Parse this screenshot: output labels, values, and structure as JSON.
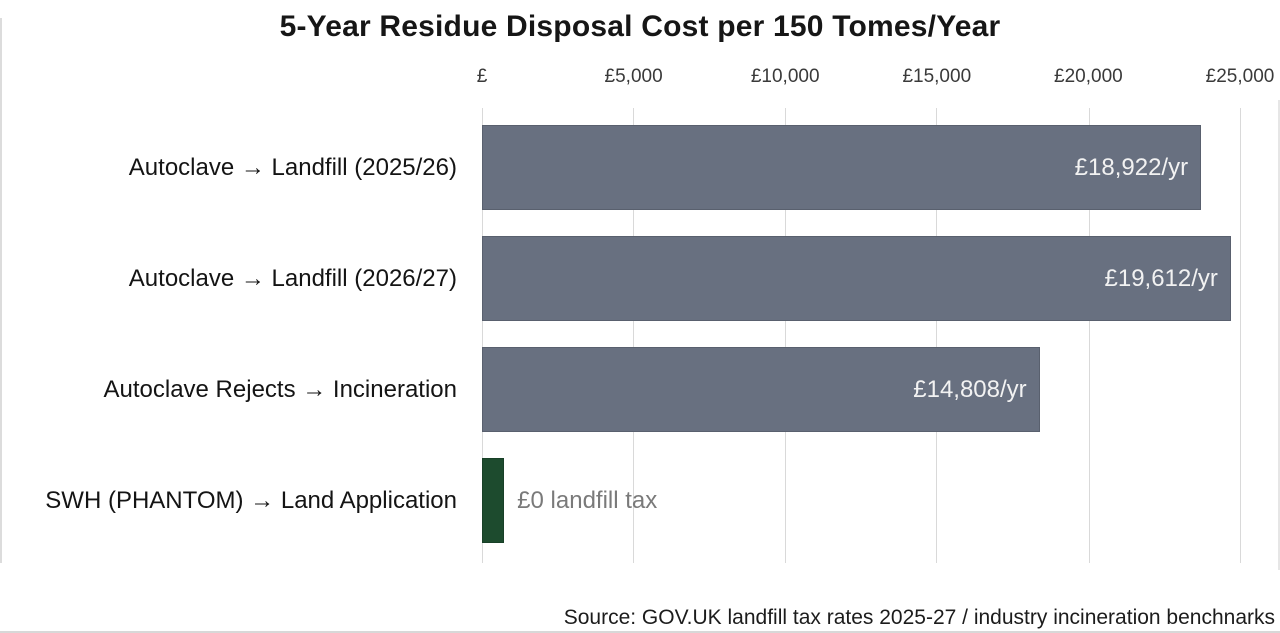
{
  "title": "5-Year Residue Disposal Cost per 150 Tomes/Year",
  "source_note": "Source: GOV.UK landfill tax rates 2025-27 / industry incineration benchnarks",
  "x_axis": {
    "tick_labels": [
      "£",
      "£5,000",
      "£10,000",
      "£15,000",
      "£20,000",
      "£25,000"
    ]
  },
  "chart_data": {
    "type": "bar",
    "orientation": "horizontal",
    "title": "5-Year Residue Disposal Cost per 150 Tomes/Year",
    "categories": [
      "Autoclave → Landfill (2025/26)",
      "Autoclave → Landfill (2026/27)",
      "Autoclave Rejects → Incineration",
      "SWH (PHANTOM) → Land Application"
    ],
    "values": [
      18922,
      19612,
      14808,
      0
    ],
    "value_labels": [
      "£18,922/yr",
      "£19,612/yr",
      "£14,808/yr",
      "£0 landfill tax"
    ],
    "xlim": [
      0,
      25000
    ],
    "x_tick_values": [
      0,
      5000,
      10000,
      15000,
      20000,
      25000
    ],
    "x_tick_labels": [
      "£",
      "£5,000",
      "£10,000",
      "£15,000",
      "£20,000",
      "£25,000"
    ],
    "grid": "vertical-light",
    "legend": "none",
    "bars": [
      {
        "category": "Autoclave → Landfill (2025/26)",
        "value": 18922,
        "value_label": "£18,922/yr",
        "label_placement": "inside-end",
        "color": "#687080",
        "display_frac": 0.94
      },
      {
        "category": "Autoclave → Landfill (2026/27)",
        "value": 19612,
        "value_label": "£19,612/yr",
        "label_placement": "inside-end",
        "color": "#687080",
        "display_frac": 0.979
      },
      {
        "category": "Autoclave Rejects → Incineration",
        "value": 14808,
        "value_label": "£14,808/yr",
        "label_placement": "inside-end",
        "color": "#687080",
        "display_frac": 0.729
      },
      {
        "category": "SWH (PHANTOM) → Land Application",
        "value": 0,
        "value_label": "£0 landfill tax",
        "label_placement": "outside-end",
        "color": "#1d4b2e",
        "display_frac": 0.029
      }
    ],
    "source": "Source: GOV.UK landfill tax rates 2025-27 / industry incineration benchnarks"
  },
  "colors": {
    "bar_gray": "#687080",
    "bar_green": "#1d4b2e",
    "gridline": "#d9d9d9",
    "tick_text": "#3a3a3a",
    "category_text": "#141414",
    "value_text_inside": "#f2f2f2",
    "value_text_muted": "#7a7a7a",
    "title_text": "#161616",
    "background": "#ffffff"
  }
}
